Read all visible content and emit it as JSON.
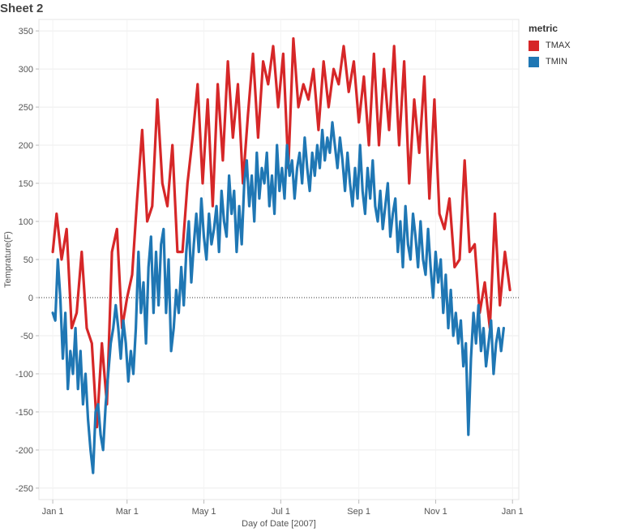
{
  "sheet": {
    "title": "Sheet 2"
  },
  "legend": {
    "title": "metric"
  },
  "chart_data": {
    "type": "line",
    "title": "",
    "xlabel": "Day of Date [2007]",
    "ylabel": "Temprature(F)",
    "x_ticks": [
      "Jan 1",
      "Mar 1",
      "May 1",
      "Jul 1",
      "Sep 1",
      "Nov 1",
      "Jan 1"
    ],
    "x_tick_days": [
      1,
      60,
      121,
      182,
      244,
      305,
      366
    ],
    "y_ticks": [
      350,
      300,
      250,
      200,
      150,
      100,
      50,
      0,
      -50,
      -100,
      -150,
      -200,
      -250
    ],
    "ylim": [
      -250,
      350
    ],
    "grid": true,
    "zero_line": "dotted",
    "legend_position": "right",
    "series": [
      {
        "name": "TMAX",
        "color": "#d62728",
        "points": [
          [
            1,
            60
          ],
          [
            4,
            110
          ],
          [
            8,
            50
          ],
          [
            12,
            90
          ],
          [
            16,
            -40
          ],
          [
            20,
            -20
          ],
          [
            24,
            60
          ],
          [
            28,
            -40
          ],
          [
            32,
            -60
          ],
          [
            36,
            -170
          ],
          [
            40,
            -60
          ],
          [
            44,
            -140
          ],
          [
            48,
            60
          ],
          [
            52,
            90
          ],
          [
            56,
            -40
          ],
          [
            60,
            0
          ],
          [
            64,
            30
          ],
          [
            68,
            130
          ],
          [
            72,
            220
          ],
          [
            76,
            100
          ],
          [
            80,
            120
          ],
          [
            84,
            260
          ],
          [
            88,
            150
          ],
          [
            92,
            120
          ],
          [
            96,
            200
          ],
          [
            100,
            60
          ],
          [
            104,
            60
          ],
          [
            108,
            150
          ],
          [
            112,
            210
          ],
          [
            116,
            280
          ],
          [
            120,
            150
          ],
          [
            124,
            260
          ],
          [
            128,
            120
          ],
          [
            132,
            280
          ],
          [
            136,
            180
          ],
          [
            140,
            310
          ],
          [
            144,
            210
          ],
          [
            148,
            280
          ],
          [
            152,
            150
          ],
          [
            156,
            240
          ],
          [
            160,
            320
          ],
          [
            164,
            210
          ],
          [
            168,
            310
          ],
          [
            172,
            280
          ],
          [
            176,
            330
          ],
          [
            180,
            250
          ],
          [
            184,
            320
          ],
          [
            188,
            170
          ],
          [
            192,
            340
          ],
          [
            196,
            250
          ],
          [
            200,
            280
          ],
          [
            204,
            260
          ],
          [
            208,
            300
          ],
          [
            212,
            220
          ],
          [
            216,
            310
          ],
          [
            220,
            250
          ],
          [
            224,
            300
          ],
          [
            228,
            280
          ],
          [
            232,
            330
          ],
          [
            236,
            270
          ],
          [
            240,
            310
          ],
          [
            244,
            230
          ],
          [
            248,
            290
          ],
          [
            252,
            200
          ],
          [
            256,
            320
          ],
          [
            260,
            200
          ],
          [
            264,
            300
          ],
          [
            268,
            220
          ],
          [
            272,
            330
          ],
          [
            276,
            200
          ],
          [
            280,
            310
          ],
          [
            284,
            150
          ],
          [
            288,
            260
          ],
          [
            292,
            190
          ],
          [
            296,
            290
          ],
          [
            300,
            130
          ],
          [
            304,
            260
          ],
          [
            308,
            110
          ],
          [
            312,
            90
          ],
          [
            316,
            130
          ],
          [
            320,
            40
          ],
          [
            324,
            50
          ],
          [
            328,
            180
          ],
          [
            332,
            60
          ],
          [
            336,
            70
          ],
          [
            340,
            -20
          ],
          [
            344,
            20
          ],
          [
            348,
            -40
          ],
          [
            352,
            110
          ],
          [
            356,
            -10
          ],
          [
            360,
            60
          ],
          [
            364,
            10
          ]
        ]
      },
      {
        "name": "TMIN",
        "color": "#1f77b4",
        "points": [
          [
            1,
            -20
          ],
          [
            3,
            -30
          ],
          [
            5,
            50
          ],
          [
            7,
            0
          ],
          [
            9,
            -80
          ],
          [
            11,
            -20
          ],
          [
            13,
            -120
          ],
          [
            15,
            -70
          ],
          [
            17,
            -100
          ],
          [
            19,
            -40
          ],
          [
            21,
            -120
          ],
          [
            23,
            -70
          ],
          [
            25,
            -140
          ],
          [
            27,
            -100
          ],
          [
            29,
            -160
          ],
          [
            31,
            -200
          ],
          [
            33,
            -230
          ],
          [
            35,
            -150
          ],
          [
            37,
            -140
          ],
          [
            39,
            -180
          ],
          [
            41,
            -200
          ],
          [
            43,
            -140
          ],
          [
            45,
            -100
          ],
          [
            47,
            -60
          ],
          [
            49,
            -40
          ],
          [
            51,
            -10
          ],
          [
            53,
            -40
          ],
          [
            55,
            -80
          ],
          [
            57,
            -30
          ],
          [
            59,
            -60
          ],
          [
            61,
            -110
          ],
          [
            63,
            -70
          ],
          [
            65,
            -100
          ],
          [
            67,
            -40
          ],
          [
            69,
            60
          ],
          [
            71,
            -20
          ],
          [
            73,
            20
          ],
          [
            75,
            -60
          ],
          [
            77,
            40
          ],
          [
            79,
            80
          ],
          [
            81,
            -20
          ],
          [
            83,
            60
          ],
          [
            85,
            -10
          ],
          [
            87,
            70
          ],
          [
            89,
            90
          ],
          [
            91,
            -20
          ],
          [
            93,
            50
          ],
          [
            95,
            -70
          ],
          [
            97,
            -40
          ],
          [
            99,
            10
          ],
          [
            101,
            -20
          ],
          [
            103,
            40
          ],
          [
            105,
            -10
          ],
          [
            107,
            60
          ],
          [
            109,
            100
          ],
          [
            111,
            20
          ],
          [
            113,
            70
          ],
          [
            115,
            110
          ],
          [
            117,
            60
          ],
          [
            119,
            130
          ],
          [
            121,
            80
          ],
          [
            123,
            50
          ],
          [
            125,
            110
          ],
          [
            127,
            70
          ],
          [
            129,
            90
          ],
          [
            131,
            120
          ],
          [
            133,
            60
          ],
          [
            135,
            140
          ],
          [
            137,
            100
          ],
          [
            139,
            80
          ],
          [
            141,
            160
          ],
          [
            143,
            110
          ],
          [
            145,
            140
          ],
          [
            147,
            60
          ],
          [
            149,
            120
          ],
          [
            151,
            70
          ],
          [
            153,
            150
          ],
          [
            155,
            180
          ],
          [
            157,
            120
          ],
          [
            159,
            160
          ],
          [
            161,
            100
          ],
          [
            163,
            190
          ],
          [
            165,
            130
          ],
          [
            167,
            170
          ],
          [
            169,
            150
          ],
          [
            171,
            190
          ],
          [
            173,
            120
          ],
          [
            175,
            160
          ],
          [
            177,
            110
          ],
          [
            179,
            200
          ],
          [
            181,
            140
          ],
          [
            183,
            170
          ],
          [
            185,
            130
          ],
          [
            187,
            200
          ],
          [
            189,
            160
          ],
          [
            191,
            180
          ],
          [
            193,
            130
          ],
          [
            195,
            170
          ],
          [
            197,
            190
          ],
          [
            199,
            150
          ],
          [
            201,
            210
          ],
          [
            203,
            170
          ],
          [
            205,
            140
          ],
          [
            207,
            190
          ],
          [
            209,
            160
          ],
          [
            211,
            200
          ],
          [
            213,
            170
          ],
          [
            215,
            220
          ],
          [
            217,
            180
          ],
          [
            219,
            210
          ],
          [
            221,
            190
          ],
          [
            223,
            230
          ],
          [
            225,
            200
          ],
          [
            227,
            170
          ],
          [
            229,
            210
          ],
          [
            231,
            180
          ],
          [
            233,
            140
          ],
          [
            235,
            190
          ],
          [
            237,
            150
          ],
          [
            239,
            120
          ],
          [
            241,
            170
          ],
          [
            243,
            130
          ],
          [
            245,
            200
          ],
          [
            247,
            140
          ],
          [
            249,
            110
          ],
          [
            251,
            170
          ],
          [
            253,
            130
          ],
          [
            255,
            180
          ],
          [
            257,
            120
          ],
          [
            259,
            100
          ],
          [
            261,
            140
          ],
          [
            263,
            90
          ],
          [
            265,
            120
          ],
          [
            267,
            150
          ],
          [
            269,
            80
          ],
          [
            271,
            110
          ],
          [
            273,
            130
          ],
          [
            275,
            60
          ],
          [
            277,
            100
          ],
          [
            279,
            40
          ],
          [
            281,
            120
          ],
          [
            283,
            70
          ],
          [
            285,
            50
          ],
          [
            287,
            110
          ],
          [
            289,
            80
          ],
          [
            291,
            40
          ],
          [
            293,
            100
          ],
          [
            295,
            50
          ],
          [
            297,
            30
          ],
          [
            299,
            90
          ],
          [
            301,
            40
          ],
          [
            303,
            0
          ],
          [
            305,
            60
          ],
          [
            307,
            20
          ],
          [
            309,
            50
          ],
          [
            311,
            -20
          ],
          [
            313,
            30
          ],
          [
            315,
            -40
          ],
          [
            317,
            10
          ],
          [
            319,
            -50
          ],
          [
            321,
            -20
          ],
          [
            323,
            -60
          ],
          [
            325,
            -30
          ],
          [
            327,
            -90
          ],
          [
            329,
            -60
          ],
          [
            331,
            -180
          ],
          [
            333,
            -80
          ],
          [
            335,
            -20
          ],
          [
            337,
            -60
          ],
          [
            339,
            -10
          ],
          [
            341,
            -70
          ],
          [
            343,
            -40
          ],
          [
            345,
            -90
          ],
          [
            347,
            -60
          ],
          [
            349,
            -30
          ],
          [
            351,
            -100
          ],
          [
            353,
            -60
          ],
          [
            355,
            -40
          ],
          [
            357,
            -70
          ],
          [
            359,
            -40
          ]
        ]
      }
    ]
  }
}
